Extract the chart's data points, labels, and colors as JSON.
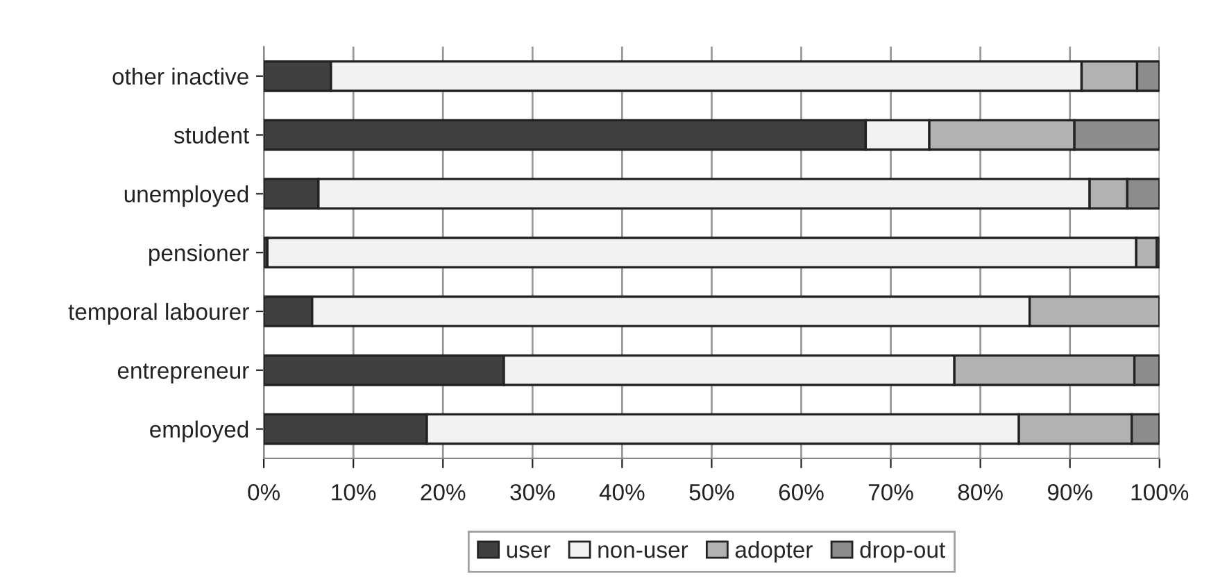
{
  "chart_data": {
    "type": "bar",
    "orientation": "horizontal",
    "stacked": true,
    "categories": [
      "other inactive",
      "student",
      "unemployed",
      "pensioner",
      "temporal labourer",
      "entrepreneur",
      "employed"
    ],
    "series": [
      {
        "name": "user",
        "color": "#404040",
        "values": [
          7.5,
          67.2,
          6.1,
          0.4,
          5.4,
          26.8,
          18.2
        ]
      },
      {
        "name": "non-user",
        "color": "#f2f2f2",
        "values": [
          83.8,
          7.1,
          86.1,
          97.0,
          80.1,
          50.3,
          66.1
        ]
      },
      {
        "name": "adopter",
        "color": "#b2b2b2",
        "values": [
          6.2,
          16.2,
          4.2,
          2.3,
          14.5,
          20.1,
          12.6
        ]
      },
      {
        "name": "drop-out",
        "color": "#8c8c8c",
        "values": [
          2.5,
          9.5,
          3.6,
          0.3,
          null,
          2.8,
          3.1
        ]
      }
    ],
    "xlim": [
      0,
      100
    ],
    "xticks": [
      {
        "value": 0,
        "label": "0%"
      },
      {
        "value": 10,
        "label": "10%"
      },
      {
        "value": 20,
        "label": "20%"
      },
      {
        "value": 30,
        "label": "30%"
      },
      {
        "value": 40,
        "label": "40%"
      },
      {
        "value": 50,
        "label": "50%"
      },
      {
        "value": 60,
        "label": "60%"
      },
      {
        "value": 70,
        "label": "70%"
      },
      {
        "value": 80,
        "label": "80%"
      },
      {
        "value": 90,
        "label": "90%"
      },
      {
        "value": 100,
        "label": "100%"
      }
    ],
    "grid": "x",
    "legend": "bottom"
  }
}
